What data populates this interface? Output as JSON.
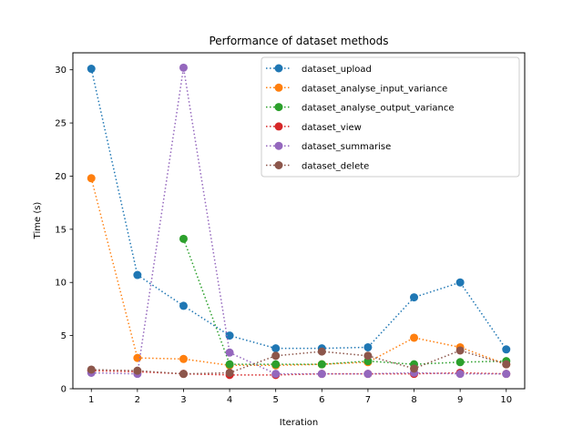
{
  "chart_data": {
    "type": "line",
    "title": "Performance of dataset methods",
    "xlabel": "Iteration",
    "ylabel": "Time (s)",
    "x": [
      1,
      2,
      3,
      4,
      5,
      6,
      7,
      8,
      9,
      10
    ],
    "xlim": [
      0.6,
      10.4
    ],
    "ylim": [
      0,
      31.6
    ],
    "xticks": [
      1,
      2,
      3,
      4,
      5,
      6,
      7,
      8,
      9,
      10
    ],
    "yticks": [
      0,
      5,
      10,
      15,
      20,
      25,
      30
    ],
    "grid": false,
    "legend_position": "top-right",
    "line_style": "dotted",
    "marker": "circle",
    "series": [
      {
        "name": "dataset_upload",
        "color": "#1f77b4",
        "values": [
          30.1,
          10.7,
          7.8,
          5.0,
          3.8,
          3.8,
          3.9,
          8.6,
          10.0,
          3.7
        ]
      },
      {
        "name": "dataset_analyse_input_variance",
        "color": "#ff7f0e",
        "values": [
          19.8,
          2.9,
          2.8,
          2.2,
          2.2,
          2.3,
          2.5,
          4.8,
          3.9,
          2.3
        ]
      },
      {
        "name": "dataset_analyse_output_variance",
        "color": "#2ca02c",
        "values": [
          null,
          null,
          14.1,
          2.3,
          2.3,
          2.3,
          2.6,
          2.3,
          2.5,
          2.6
        ]
      },
      {
        "name": "dataset_view",
        "color": "#d62728",
        "values": [
          1.7,
          1.6,
          1.4,
          1.3,
          1.3,
          1.4,
          1.4,
          1.4,
          1.5,
          1.4
        ]
      },
      {
        "name": "dataset_summarise",
        "color": "#9467bd",
        "values": [
          1.5,
          1.4,
          30.2,
          3.4,
          1.4,
          1.4,
          1.4,
          1.5,
          1.4,
          1.4
        ]
      },
      {
        "name": "dataset_delete",
        "color": "#8c564b",
        "values": [
          1.8,
          1.7,
          1.4,
          1.5,
          3.1,
          3.5,
          3.1,
          1.9,
          3.6,
          2.3
        ]
      }
    ]
  }
}
